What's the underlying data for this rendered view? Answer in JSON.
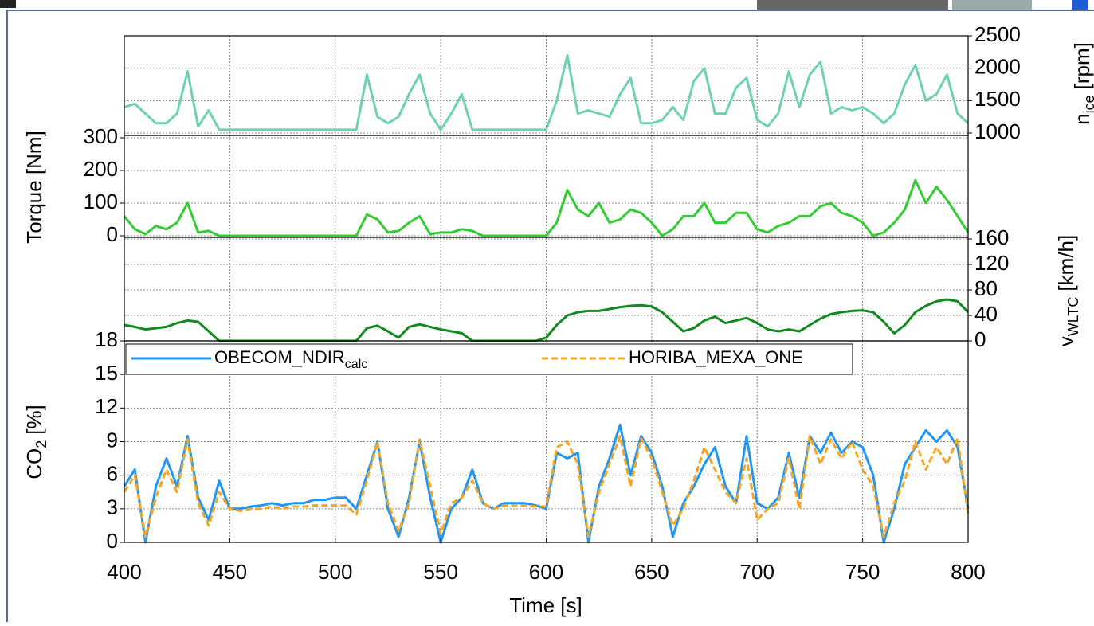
{
  "chart_data": {
    "type": "line",
    "x": [
      400,
      405,
      410,
      415,
      420,
      425,
      430,
      435,
      440,
      445,
      450,
      455,
      460,
      465,
      470,
      475,
      480,
      485,
      490,
      495,
      500,
      505,
      510,
      515,
      520,
      525,
      530,
      535,
      540,
      545,
      550,
      555,
      560,
      565,
      570,
      575,
      580,
      585,
      590,
      595,
      600,
      605,
      610,
      615,
      620,
      625,
      630,
      635,
      640,
      645,
      650,
      655,
      660,
      665,
      670,
      675,
      680,
      685,
      690,
      695,
      700,
      705,
      710,
      715,
      720,
      725,
      730,
      735,
      740,
      745,
      750,
      755,
      760,
      765,
      770,
      775,
      780,
      785,
      790,
      795,
      800
    ],
    "xlim": [
      400,
      800
    ],
    "xticks": [
      400,
      450,
      500,
      550,
      600,
      650,
      700,
      750,
      800
    ],
    "xlabel": "Time [s]",
    "grid": true,
    "panels": [
      {
        "ylim": [
          1000,
          2500
        ],
        "yticks": [
          1000,
          1500,
          2000,
          2500
        ],
        "axis_side": "right",
        "ylabel": {
          "text": "n",
          "sub": "ice",
          "unit": "[rpm]"
        },
        "series": [
          {
            "name": "n_ice",
            "color": "#6fd1b4",
            "values": [
              1400,
              1450,
              1300,
              1150,
              1150,
              1300,
              1950,
              1100,
              1350,
              1050,
              1050,
              1050,
              1050,
              1050,
              1050,
              1050,
              1050,
              1050,
              1050,
              1050,
              1050,
              1050,
              1050,
              1900,
              1250,
              1150,
              1250,
              1600,
              1900,
              1300,
              1050,
              1300,
              1600,
              1050,
              1050,
              1050,
              1050,
              1050,
              1050,
              1050,
              1050,
              1500,
              2200,
              1300,
              1350,
              1300,
              1250,
              1600,
              1850,
              1150,
              1150,
              1200,
              1400,
              1200,
              1800,
              2000,
              1300,
              1300,
              1700,
              1850,
              1200,
              1100,
              1300,
              1950,
              1400,
              1900,
              2100,
              1300,
              1400,
              1350,
              1400,
              1300,
              1150,
              1300,
              1750,
              2050,
              1500,
              1600,
              1900,
              1300,
              1150
            ]
          }
        ]
      },
      {
        "ylim": [
          0,
          300
        ],
        "yticks": [
          0,
          100,
          200,
          300
        ],
        "axis_side": "left",
        "ylabel": {
          "text": "Torque [Nm]"
        },
        "series": [
          {
            "name": "Torque",
            "color": "#33cc33",
            "values": [
              60,
              20,
              5,
              30,
              20,
              40,
              100,
              10,
              15,
              0,
              0,
              0,
              0,
              0,
              0,
              0,
              0,
              0,
              0,
              0,
              0,
              0,
              0,
              65,
              50,
              10,
              15,
              40,
              60,
              5,
              10,
              10,
              20,
              15,
              0,
              0,
              0,
              0,
              0,
              0,
              0,
              40,
              140,
              80,
              60,
              100,
              40,
              50,
              80,
              70,
              40,
              0,
              20,
              60,
              60,
              100,
              40,
              40,
              70,
              70,
              20,
              10,
              30,
              40,
              60,
              60,
              90,
              100,
              70,
              60,
              40,
              0,
              10,
              40,
              80,
              170,
              100,
              150,
              110,
              60,
              10
            ]
          }
        ]
      },
      {
        "ylim": [
          0,
          160
        ],
        "yticks": [
          0,
          40,
          80,
          120,
          160
        ],
        "axis_side": "right",
        "ylabel": {
          "text": "v",
          "sub": "WLTC",
          "unit": "[km/h]"
        },
        "series": [
          {
            "name": "v_WLTC",
            "color": "#118a1f",
            "values": [
              25,
              22,
              18,
              20,
              22,
              28,
              32,
              30,
              15,
              0,
              0,
              0,
              0,
              0,
              0,
              0,
              0,
              0,
              0,
              0,
              0,
              0,
              0,
              20,
              24,
              15,
              5,
              22,
              26,
              22,
              18,
              15,
              12,
              0,
              0,
              0,
              0,
              0,
              0,
              0,
              5,
              25,
              40,
              45,
              47,
              47,
              50,
              53,
              55,
              56,
              54,
              45,
              30,
              15,
              20,
              32,
              38,
              28,
              32,
              36,
              28,
              18,
              15,
              18,
              15,
              25,
              35,
              42,
              45,
              47,
              48,
              45,
              30,
              12,
              25,
              45,
              55,
              62,
              65,
              62,
              45
            ]
          }
        ]
      },
      {
        "ylim": [
          0,
          18
        ],
        "yticks": [
          0,
          3,
          6,
          9,
          12,
          15,
          18
        ],
        "axis_side": "left",
        "ylabel": {
          "text": "CO",
          "sub": "2",
          "unit": "[%]"
        },
        "legend": "top",
        "series": [
          {
            "name": "OBECOM_NDIR",
            "name_sub": "calc",
            "color": "#2196f3",
            "dash": false,
            "values": [
              5,
              6.5,
              0,
              5,
              7.5,
              5,
              9.5,
              4,
              2,
              5.5,
              3,
              3,
              3.2,
              3.3,
              3.5,
              3.3,
              3.5,
              3.5,
              3.8,
              3.8,
              4,
              4,
              3,
              6,
              9,
              3,
              0.5,
              4,
              9,
              4,
              0,
              3,
              4,
              6.5,
              3.5,
              3,
              3.5,
              3.5,
              3.5,
              3.3,
              3,
              8,
              7.5,
              8,
              0,
              5,
              7.5,
              10.5,
              6,
              9.5,
              8,
              5,
              0.5,
              3.5,
              5,
              7,
              8.5,
              5,
              3.5,
              9.5,
              3.5,
              3,
              4,
              8,
              4,
              9.5,
              8,
              9.8,
              8,
              9,
              8.5,
              6,
              0,
              3,
              7,
              8.5,
              10,
              9,
              10,
              8.5,
              3
            ]
          },
          {
            "name": "HORIBA_MEXA_ONE",
            "color": "#f5a623",
            "dash": true,
            "values": [
              4.5,
              6,
              0.5,
              4,
              6.5,
              4.5,
              9.2,
              3.5,
              1.5,
              4.5,
              3,
              2.8,
              3,
              3,
              3.2,
              3,
              3.2,
              3.2,
              3.3,
              3.3,
              3.3,
              3.3,
              2.5,
              5.5,
              9,
              3.5,
              1,
              3.5,
              9.2,
              5,
              0.8,
              3.5,
              4,
              5.5,
              3.5,
              3,
              3.3,
              3.3,
              3.3,
              3.2,
              3.2,
              8.5,
              9,
              7,
              0.5,
              4.5,
              7,
              9.5,
              5,
              9.3,
              7.5,
              4.5,
              1.5,
              3,
              5.5,
              8.5,
              6.5,
              4.5,
              3.5,
              7.5,
              2,
              3,
              3.5,
              7.5,
              3,
              9.5,
              7,
              9.2,
              7.5,
              9,
              6.5,
              5,
              0.5,
              3.5,
              5.5,
              9,
              6.5,
              8.5,
              7,
              9.3,
              2.5
            ]
          }
        ]
      }
    ]
  }
}
